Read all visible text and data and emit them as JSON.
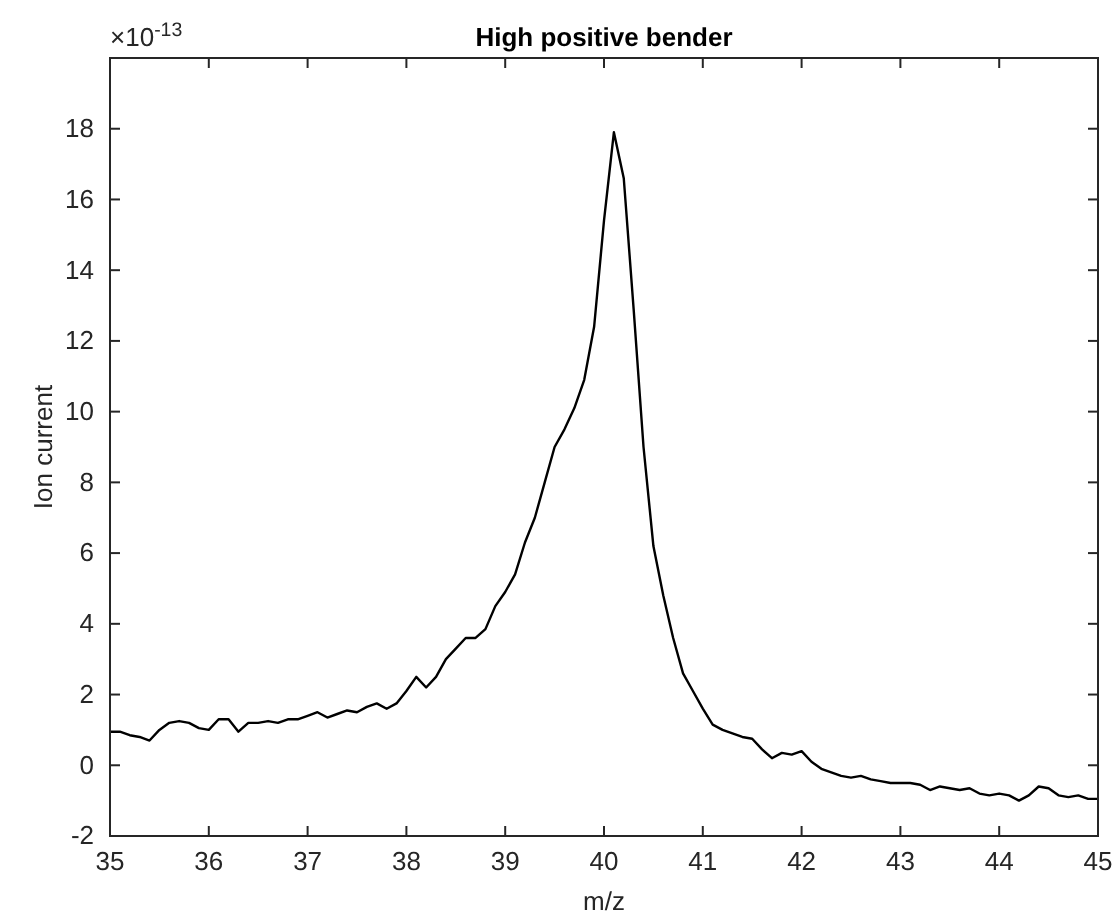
{
  "chart_data": {
    "type": "line",
    "title": "High positive bender",
    "xlabel": "m/z",
    "ylabel": "Ion current",
    "annotations": [
      "×10$^{-13}$"
    ],
    "x": [
      35.0,
      35.1,
      35.2,
      35.3,
      35.4,
      35.5,
      35.6,
      35.7,
      35.8,
      35.9,
      36.0,
      36.1,
      36.2,
      36.3,
      36.4,
      36.5,
      36.6,
      36.7,
      36.8,
      36.9,
      37.0,
      37.1,
      37.2,
      37.3,
      37.4,
      37.5,
      37.6,
      37.7,
      37.8,
      37.9,
      38.0,
      38.1,
      38.2,
      38.3,
      38.4,
      38.5,
      38.6,
      38.7,
      38.8,
      38.9,
      39.0,
      39.1,
      39.2,
      39.3,
      39.4,
      39.5,
      39.6,
      39.7,
      39.8,
      39.9,
      40.0,
      40.1,
      40.2,
      40.3,
      40.4,
      40.5,
      40.6,
      40.7,
      40.8,
      40.9,
      41.0,
      41.1,
      41.2,
      41.3,
      41.4,
      41.5,
      41.6,
      41.7,
      41.8,
      41.9,
      42.0,
      42.1,
      42.2,
      42.3,
      42.4,
      42.5,
      42.6,
      42.7,
      42.8,
      42.9,
      43.0,
      43.1,
      43.2,
      43.3,
      43.4,
      43.5,
      43.6,
      43.7,
      43.8,
      43.9,
      44.0,
      44.1,
      44.2,
      44.3,
      44.4,
      44.5,
      44.6,
      44.7,
      44.8,
      44.9,
      45.0
    ],
    "series": [
      {
        "color": "#000000",
        "values": [
          0.95,
          0.95,
          0.85,
          0.8,
          0.7,
          1.0,
          1.2,
          1.25,
          1.2,
          1.05,
          1.0,
          1.3,
          1.3,
          0.95,
          1.2,
          1.2,
          1.25,
          1.2,
          1.3,
          1.3,
          1.4,
          1.5,
          1.35,
          1.45,
          1.55,
          1.5,
          1.65,
          1.75,
          1.6,
          1.75,
          2.1,
          2.5,
          2.2,
          2.5,
          3.0,
          3.3,
          3.6,
          3.6,
          3.85,
          4.5,
          4.9,
          5.4,
          6.3,
          7.0,
          8.0,
          9.0,
          9.5,
          10.1,
          10.9,
          12.4,
          15.4,
          17.9,
          16.6,
          12.9,
          9.0,
          6.2,
          4.8,
          3.6,
          2.6,
          2.1,
          1.6,
          1.15,
          1.0,
          0.9,
          0.8,
          0.75,
          0.45,
          0.2,
          0.35,
          0.3,
          0.4,
          0.1,
          -0.1,
          -0.2,
          -0.3,
          -0.35,
          -0.3,
          -0.4,
          -0.45,
          -0.5,
          -0.5,
          -0.5,
          -0.55,
          -0.7,
          -0.6,
          -0.65,
          -0.7,
          -0.65,
          -0.8,
          -0.85,
          -0.8,
          -0.85,
          -1.0,
          -0.85,
          -0.6,
          -0.65,
          -0.85,
          -0.9,
          -0.85,
          -0.95,
          -0.95
        ]
      }
    ],
    "xlim": [
      35,
      45
    ],
    "xticks": [
      35,
      36,
      37,
      38,
      39,
      40,
      41,
      42,
      43,
      44,
      45
    ],
    "ylim": [
      -2,
      20
    ],
    "yticks": [
      -2,
      0,
      2,
      4,
      6,
      8,
      10,
      12,
      14,
      16,
      18
    ],
    "marker": "none",
    "line_style": "solid"
  }
}
